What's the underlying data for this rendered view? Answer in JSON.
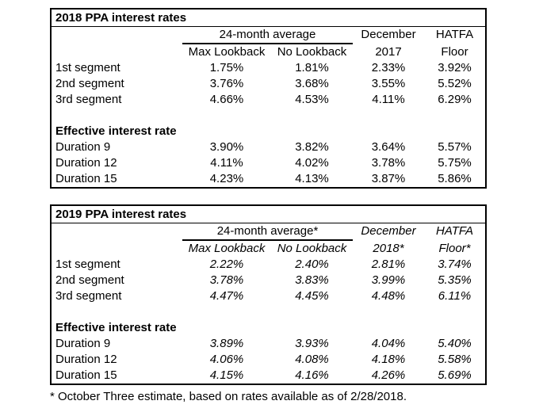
{
  "colors": {
    "background": "#ffffff",
    "border": "#000000",
    "text": "#000000"
  },
  "tables": [
    {
      "title": "2018 PPA interest rates",
      "span_header": "24-month average",
      "sub_headers": {
        "col1": "Max Lookback",
        "col2": "No Lookback"
      },
      "col3_header": {
        "line1": "December",
        "line2": "2017"
      },
      "col4_header": {
        "line1": "HATFA",
        "line2": "Floor"
      },
      "segment_rows": [
        {
          "label": "1st segment",
          "max_lookback": "1.75%",
          "no_lookback": "1.81%",
          "december": "2.33%",
          "hatfa": "3.92%"
        },
        {
          "label": "2nd segment",
          "max_lookback": "3.76%",
          "no_lookback": "3.68%",
          "december": "3.55%",
          "hatfa": "5.52%"
        },
        {
          "label": "3rd segment",
          "max_lookback": "4.66%",
          "no_lookback": "4.53%",
          "december": "4.11%",
          "hatfa": "6.29%"
        }
      ],
      "section_label": "Effective interest rate",
      "duration_rows": [
        {
          "label": "Duration 9",
          "max_lookback": "3.90%",
          "no_lookback": "3.82%",
          "december": "3.64%",
          "hatfa": "5.57%"
        },
        {
          "label": "Duration 12",
          "max_lookback": "4.11%",
          "no_lookback": "4.02%",
          "december": "3.78%",
          "hatfa": "5.75%"
        },
        {
          "label": "Duration 15",
          "max_lookback": "4.23%",
          "no_lookback": "4.13%",
          "december": "3.87%",
          "hatfa": "5.86%"
        }
      ]
    },
    {
      "title": "2019 PPA interest rates",
      "span_header": "24-month average*",
      "sub_headers": {
        "col1": "Max Lookback",
        "col2": "No Lookback"
      },
      "col3_header": {
        "line1": "December",
        "line2": "2018*"
      },
      "col4_header": {
        "line1": "HATFA",
        "line2": "Floor*"
      },
      "segment_rows": [
        {
          "label": "1st segment",
          "max_lookback": "2.22%",
          "no_lookback": "2.40%",
          "december": "2.81%",
          "hatfa": "3.74%"
        },
        {
          "label": "2nd segment",
          "max_lookback": "3.78%",
          "no_lookback": "3.83%",
          "december": "3.99%",
          "hatfa": "5.35%"
        },
        {
          "label": "3rd segment",
          "max_lookback": "4.47%",
          "no_lookback": "4.45%",
          "december": "4.48%",
          "hatfa": "6.11%"
        }
      ],
      "section_label": "Effective interest rate",
      "duration_rows": [
        {
          "label": "Duration 9",
          "max_lookback": "3.89%",
          "no_lookback": "3.93%",
          "december": "4.04%",
          "hatfa": "5.40%"
        },
        {
          "label": "Duration 12",
          "max_lookback": "4.06%",
          "no_lookback": "4.08%",
          "december": "4.18%",
          "hatfa": "5.58%"
        },
        {
          "label": "Duration 15",
          "max_lookback": "4.15%",
          "no_lookback": "4.16%",
          "december": "4.26%",
          "hatfa": "5.69%"
        }
      ]
    }
  ],
  "footnote": "* October Three estimate, based on rates available as of 2/28/2018."
}
